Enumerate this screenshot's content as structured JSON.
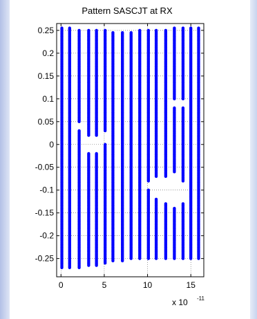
{
  "chart_data": {
    "type": "scatter",
    "title": "Pattern SASCJT at RX",
    "xlabel": "",
    "ylabel": "",
    "x_exponent_base": "x 10",
    "x_exponent_power": "-11",
    "xlim": [
      -0.5,
      16.5
    ],
    "ylim": [
      -0.29,
      0.265
    ],
    "grid": true,
    "marker_color": "#0000ff",
    "x_ticks": [
      0,
      5,
      10,
      15
    ],
    "x_tick_labels": [
      "0",
      "5",
      "10",
      "15"
    ],
    "y_ticks": [
      0.25,
      0.2,
      0.15,
      0.1,
      0.05,
      0,
      -0.05,
      -0.1,
      -0.15,
      -0.2,
      -0.25
    ],
    "y_tick_labels": [
      "0.25",
      "0.2",
      "0.15",
      "0.1",
      "0.05",
      "0",
      "-0.05",
      "-0.1",
      "-0.15",
      "-0.2",
      "-0.25"
    ],
    "series": [
      {
        "x": [
          0.1,
          1.0,
          2.1,
          3.2,
          4.1,
          5.1,
          6.0,
          7.1,
          8.1,
          9.1,
          10.1,
          11.0,
          12.1,
          13.1,
          14.1,
          15.0,
          15.9
        ],
        "y_segments": [
          [
            [
              -0.27,
              0.255
            ]
          ],
          [
            [
              -0.27,
              0.255
            ]
          ],
          [
            [
              -0.27,
              0.03
            ],
            [
              0.05,
              0.25
            ]
          ],
          [
            [
              -0.265,
              -0.02
            ],
            [
              0.02,
              0.25
            ]
          ],
          [
            [
              -0.265,
              -0.02
            ],
            [
              0.02,
              0.25
            ]
          ],
          [
            [
              -0.26,
              0.0
            ],
            [
              0.03,
              0.25
            ]
          ],
          [
            [
              -0.255,
              0.245
            ]
          ],
          [
            [
              -0.255,
              0.245
            ]
          ],
          [
            [
              -0.25,
              0.245
            ]
          ],
          [
            [
              -0.25,
              0.25
            ]
          ],
          [
            [
              -0.25,
              -0.1
            ],
            [
              -0.08,
              0.25
            ]
          ],
          [
            [
              -0.25,
              -0.12
            ],
            [
              -0.07,
              0.25
            ]
          ],
          [
            [
              -0.25,
              -0.13
            ],
            [
              -0.07,
              0.25
            ]
          ],
          [
            [
              -0.25,
              -0.14
            ],
            [
              -0.06,
              0.08
            ],
            [
              0.1,
              0.255
            ]
          ],
          [
            [
              -0.25,
              -0.13
            ],
            [
              -0.08,
              0.08
            ],
            [
              0.1,
              0.255
            ]
          ],
          [
            [
              -0.25,
              0.255
            ]
          ],
          [
            [
              -0.25,
              0.255
            ]
          ]
        ]
      }
    ]
  }
}
